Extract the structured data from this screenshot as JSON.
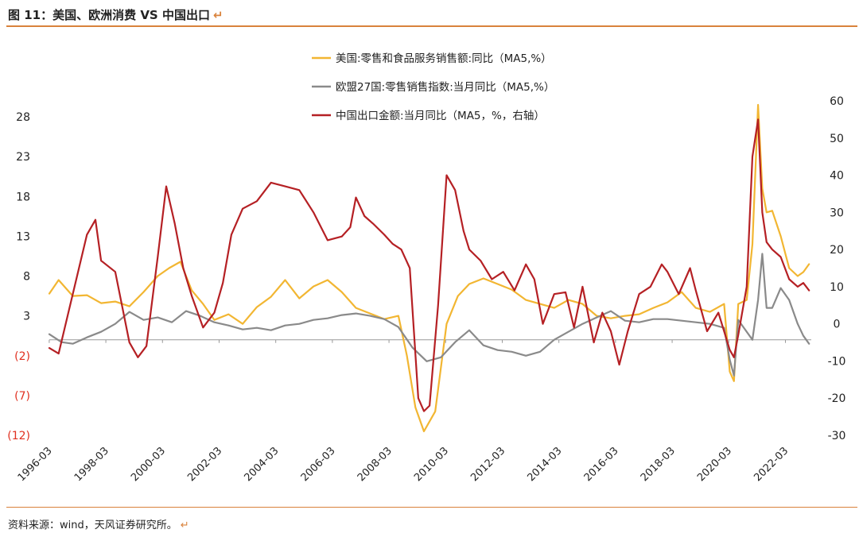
{
  "header": {
    "title": "图 11：美国、欧洲消费 VS 中国出口",
    "return_mark": "↵"
  },
  "footer": {
    "source": "资料来源：wind，天风证券研究所。",
    "return_mark": "↵"
  },
  "chart_data": {
    "type": "line",
    "title": "",
    "x_tick_labels": [
      "1996-03",
      "1998-03",
      "2000-03",
      "2002-03",
      "2004-03",
      "2006-03",
      "2008-03",
      "2010-03",
      "2012-03",
      "2014-03",
      "2016-03",
      "2018-03",
      "2020-03",
      "2022-03"
    ],
    "x_range": [
      1996.17,
      2023.08
    ],
    "left_axis": {
      "ylim": [
        -12,
        30
      ],
      "ticks": [
        28,
        23,
        18,
        13,
        8,
        3,
        -2,
        -7,
        -12
      ],
      "tick_labels": [
        "28",
        "23",
        "18",
        "13",
        "8",
        "3",
        "(2)",
        "(7)",
        "(12)"
      ],
      "negative_color": "#e03020"
    },
    "right_axis": {
      "ylim": [
        -30,
        60
      ],
      "ticks": [
        60,
        50,
        40,
        30,
        20,
        10,
        0,
        -10,
        -20,
        -30
      ],
      "tick_labels": [
        "60",
        "50",
        "40",
        "30",
        "20",
        "10",
        "0",
        "-10",
        "-20",
        "-30"
      ]
    },
    "legend_position": "top-center",
    "series": [
      {
        "name": "美国:零售和食品服务销售额:同比（MA5,%）",
        "axis": "left",
        "color": "#f2b632",
        "x": [
          1996.17,
          1996.5,
          1997.0,
          1997.5,
          1998.0,
          1998.5,
          1999.0,
          1999.5,
          2000.0,
          2000.4,
          2000.8,
          2001.2,
          2001.6,
          2002.0,
          2002.5,
          2003.0,
          2003.5,
          2004.0,
          2004.5,
          2005.0,
          2005.5,
          2006.0,
          2006.5,
          2007.0,
          2007.5,
          2008.0,
          2008.5,
          2008.8,
          2009.1,
          2009.4,
          2009.8,
          2010.2,
          2010.6,
          2011.0,
          2011.5,
          2012.0,
          2012.5,
          2013.0,
          2013.5,
          2014.0,
          2014.5,
          2015.0,
          2015.5,
          2016.0,
          2016.5,
          2017.0,
          2017.5,
          2018.0,
          2018.5,
          2019.0,
          2019.5,
          2020.0,
          2020.2,
          2020.35,
          2020.5,
          2020.8,
          2021.0,
          2021.2,
          2021.35,
          2021.5,
          2021.7,
          2022.0,
          2022.3,
          2022.6,
          2022.8,
          2023.0
        ],
        "values": [
          5.8,
          7.5,
          5.5,
          5.6,
          4.6,
          4.8,
          4.2,
          6.0,
          8.0,
          9.0,
          9.8,
          6.2,
          4.5,
          2.5,
          3.2,
          2.0,
          4.1,
          5.4,
          7.5,
          5.2,
          6.7,
          7.5,
          6.0,
          4.0,
          3.3,
          2.6,
          3.0,
          -2.0,
          -8.5,
          -11.5,
          -9.0,
          2.0,
          5.5,
          7.0,
          7.7,
          7.0,
          6.3,
          5.0,
          4.5,
          4.0,
          5.0,
          4.5,
          3.0,
          2.7,
          3.0,
          3.2,
          4.0,
          4.7,
          6.0,
          4.0,
          3.5,
          4.5,
          -4.0,
          -5.2,
          4.5,
          5.0,
          12.0,
          29.5,
          19.0,
          16.0,
          16.2,
          13.0,
          9.0,
          8.0,
          8.5,
          9.5
        ]
      },
      {
        "name": "欧盟27国:零售销售指数:当月同比（MA5,%）",
        "axis": "left",
        "color": "#8a8a8a",
        "x": [
          1996.17,
          1996.6,
          1997.0,
          1997.5,
          1998.0,
          1998.5,
          1999.0,
          1999.5,
          2000.0,
          2000.5,
          2001.0,
          2001.5,
          2002.0,
          2002.5,
          2003.0,
          2003.5,
          2004.0,
          2004.5,
          2005.0,
          2005.5,
          2006.0,
          2006.5,
          2007.0,
          2007.5,
          2008.0,
          2008.5,
          2009.0,
          2009.5,
          2010.0,
          2010.5,
          2011.0,
          2011.5,
          2012.0,
          2012.5,
          2013.0,
          2013.5,
          2014.0,
          2014.5,
          2015.0,
          2015.5,
          2016.0,
          2016.5,
          2017.0,
          2017.5,
          2018.0,
          2018.5,
          2019.0,
          2019.5,
          2020.0,
          2020.2,
          2020.35,
          2020.5,
          2020.7,
          2021.0,
          2021.2,
          2021.35,
          2021.5,
          2021.7,
          2022.0,
          2022.3,
          2022.6,
          2022.8,
          2023.0
        ],
        "values": [
          0.7,
          -0.3,
          -0.5,
          0.3,
          1.0,
          2.0,
          3.5,
          2.5,
          2.8,
          2.2,
          3.6,
          3.0,
          2.2,
          1.8,
          1.3,
          1.5,
          1.2,
          1.8,
          2.0,
          2.5,
          2.7,
          3.1,
          3.3,
          3.0,
          2.6,
          1.6,
          -1.0,
          -2.7,
          -2.2,
          -0.3,
          1.2,
          -0.7,
          -1.3,
          -1.5,
          -2.0,
          -1.5,
          0.0,
          1.0,
          2.0,
          2.8,
          3.6,
          2.4,
          2.2,
          2.6,
          2.6,
          2.4,
          2.2,
          2.0,
          1.5,
          -2.5,
          -4.5,
          2.5,
          1.5,
          0.0,
          5.0,
          10.8,
          4.0,
          4.0,
          6.5,
          5.0,
          2.0,
          0.5,
          -0.5
        ]
      },
      {
        "name": "中国出口金额:当月同比（MA5，%，右轴）",
        "axis": "right",
        "color": "#b52024",
        "x": [
          1996.17,
          1996.5,
          1997.0,
          1997.5,
          1997.8,
          1998.0,
          1998.5,
          1999.0,
          1999.3,
          1999.6,
          2000.0,
          2000.3,
          2000.6,
          2000.9,
          2001.2,
          2001.6,
          2002.0,
          2002.3,
          2002.6,
          2003.0,
          2003.5,
          2004.0,
          2004.5,
          2005.0,
          2005.5,
          2006.0,
          2006.5,
          2006.8,
          2007.0,
          2007.3,
          2007.6,
          2008.0,
          2008.3,
          2008.6,
          2008.9,
          2009.2,
          2009.4,
          2009.6,
          2009.9,
          2010.2,
          2010.5,
          2010.8,
          2011.0,
          2011.4,
          2011.8,
          2012.2,
          2012.6,
          2013.0,
          2013.3,
          2013.6,
          2014.0,
          2014.4,
          2014.7,
          2015.0,
          2015.4,
          2015.7,
          2016.0,
          2016.3,
          2016.6,
          2017.0,
          2017.4,
          2017.8,
          2018.0,
          2018.4,
          2018.8,
          2019.0,
          2019.4,
          2019.8,
          2020.0,
          2020.2,
          2020.35,
          2020.5,
          2020.8,
          2021.0,
          2021.2,
          2021.35,
          2021.5,
          2021.7,
          2022.0,
          2022.3,
          2022.6,
          2022.8,
          2023.0
        ],
        "values": [
          -6.5,
          -8.0,
          8.0,
          24.0,
          28.0,
          17.0,
          14.0,
          -5.0,
          -9.0,
          -6.0,
          18.0,
          37.0,
          27.0,
          15.0,
          7.5,
          -1.0,
          3.0,
          11.0,
          24.0,
          31.0,
          33.0,
          38.0,
          37.0,
          36.0,
          30.0,
          22.5,
          23.5,
          26.0,
          34.0,
          29.0,
          27.0,
          24.0,
          21.5,
          20.0,
          15.0,
          -20.0,
          -23.5,
          -22.0,
          5.0,
          40.0,
          36.0,
          25.0,
          20.0,
          17.0,
          12.0,
          14.0,
          9.0,
          16.0,
          12.0,
          0.0,
          8.0,
          8.5,
          -1.0,
          10.0,
          -5.0,
          3.0,
          -2.0,
          -11.0,
          -2.0,
          8.0,
          10.0,
          16.0,
          14.0,
          8.0,
          15.0,
          9.0,
          -2.0,
          3.0,
          -2.0,
          -7.0,
          -9.0,
          -3.0,
          10.0,
          45.0,
          55.0,
          30.0,
          22.0,
          20.0,
          18.0,
          12.0,
          10.0,
          11.0,
          9.0
        ]
      }
    ]
  }
}
